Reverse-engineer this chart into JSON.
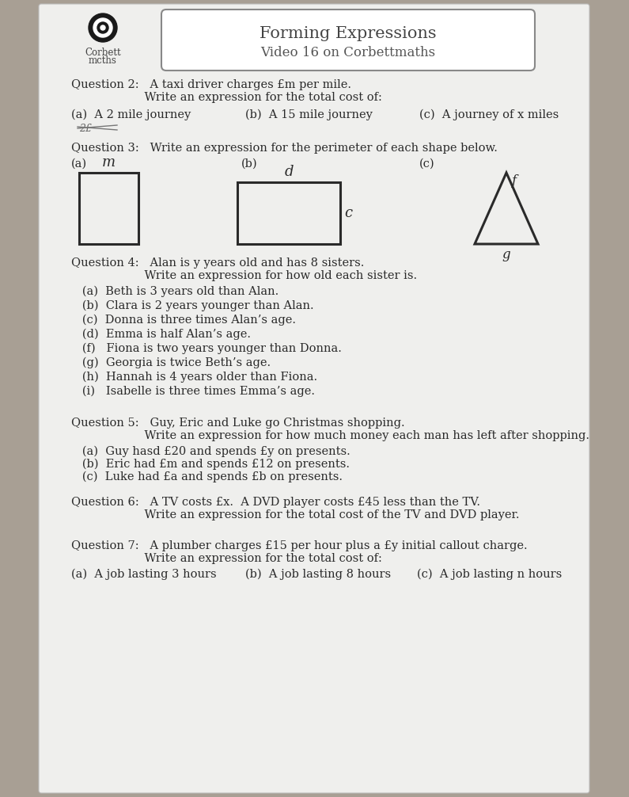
{
  "title": "Forming Expressions",
  "subtitle": "Video 16 on Corbettmaths",
  "bg_color": "#a89f94",
  "paper_color": "#efefed",
  "text_color": "#2a2a2a",
  "q2_header1": "Question 2:   A taxi driver charges £m per mile.",
  "q2_header2": "                    Write an expression for the total cost of:",
  "q2a": "(a)  A 2 mile journey",
  "q2b": "(b)  A 15 mile journey",
  "q2c": "(c)  A journey of x miles",
  "q3_header": "Question 3:   Write an expression for the perimeter of each shape below.",
  "q3a": "(a)",
  "q3b": "(b)",
  "q3c": "(c)",
  "q4_header1": "Question 4:   Alan is y years old and has 8 sisters.",
  "q4_header2": "                    Write an expression for how old each sister is.",
  "q4a": "   (a)  Beth is 3 years old than Alan.",
  "q4b": "   (b)  Clara is 2 years younger than Alan.",
  "q4c": "   (c)  Donna is three times Alan’s age.",
  "q4d": "   (d)  Emma is half Alan’s age.",
  "q4f": "   (f)   Fiona is two years younger than Donna.",
  "q4g": "   (g)  Georgia is twice Beth’s age.",
  "q4h": "   (h)  Hannah is 4 years older than Fiona.",
  "q4i": "   (i)   Isabelle is three times Emma’s age.",
  "q5_header1": "Question 5:   Guy, Eric and Luke go Christmas shopping.",
  "q5_header2": "                    Write an expression for how much money each man has left after shopping.",
  "q5a": "   (a)  Guy hasd £20 and spends £y on presents.",
  "q5b": "   (b)  Eric had £m and spends £12 on presents.",
  "q5c": "   (c)  Luke had £a and spends £b on presents.",
  "q6_header1": "Question 6:   A TV costs £x.  A DVD player costs £45 less than the TV.",
  "q6_header2": "                    Write an expression for the total cost of the TV and DVD player.",
  "q7_header1": "Question 7:   A plumber charges £15 per hour plus a £y initial callout charge.",
  "q7_header2": "                    Write an expression for the total cost of:",
  "q7a": "(a)  A job lasting 3 hours",
  "q7b": "(b)  A job lasting 8 hours",
  "q7c": "(c)  A job lasting n hours"
}
